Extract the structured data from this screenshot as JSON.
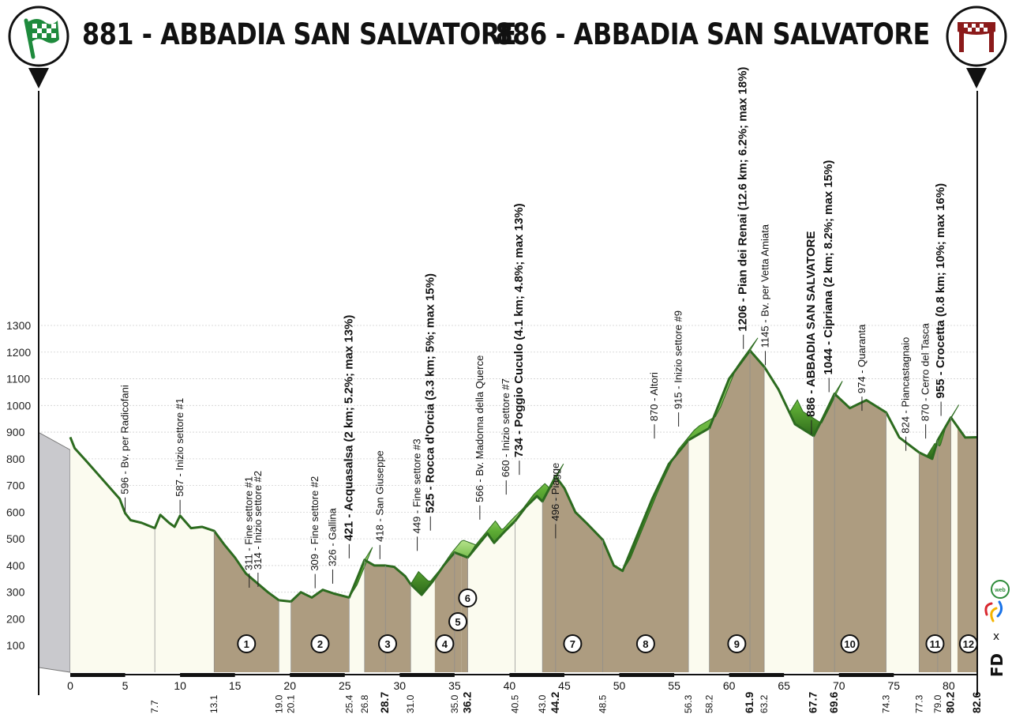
{
  "header": {
    "start_label": "881 - ABBADIA SAN SALVATORE",
    "finish_label": "886 - ABBADIA SAN SALVATORE",
    "start_icon": "checkered-flag-icon",
    "finish_icon": "finish-arch-icon"
  },
  "chart_data": {
    "type": "area",
    "title": "",
    "xlabel": "",
    "ylabel": "",
    "xlim": [
      0,
      82.6
    ],
    "ylim": [
      0,
      1300
    ],
    "y_ticks": [
      100,
      200,
      300,
      400,
      500,
      600,
      700,
      800,
      900,
      1000,
      1100,
      1200,
      1300
    ],
    "x_ticks": [
      0,
      5,
      10,
      15,
      20,
      25,
      30,
      35,
      40,
      45,
      50,
      55,
      60,
      65,
      70,
      75,
      80
    ],
    "x_end_label": "82.6",
    "grid": true,
    "colors": {
      "road_fill": "#ad9c80",
      "gravel_fill": "#fbfbef",
      "sector_line": "#7b5e2c",
      "climb_dark": "#1f3a16",
      "climb_mid": "#4f9a2c",
      "climb_light": "#a6db7a",
      "outline": "#2c6b1f"
    },
    "elevation": [
      {
        "km": 0,
        "alt": 881
      },
      {
        "km": 0.4,
        "alt": 840
      },
      {
        "km": 1.5,
        "alt": 790
      },
      {
        "km": 3,
        "alt": 720
      },
      {
        "km": 4.5,
        "alt": 650
      },
      {
        "km": 5,
        "alt": 596
      },
      {
        "km": 5.5,
        "alt": 570
      },
      {
        "km": 6.5,
        "alt": 560
      },
      {
        "km": 7.7,
        "alt": 540
      },
      {
        "km": 8.2,
        "alt": 590
      },
      {
        "km": 9,
        "alt": 560
      },
      {
        "km": 9.5,
        "alt": 545
      },
      {
        "km": 10,
        "alt": 587
      },
      {
        "km": 11,
        "alt": 540
      },
      {
        "km": 12,
        "alt": 545
      },
      {
        "km": 13.1,
        "alt": 530
      },
      {
        "km": 14,
        "alt": 480
      },
      {
        "km": 15,
        "alt": 430
      },
      {
        "km": 16,
        "alt": 370
      },
      {
        "km": 17,
        "alt": 335
      },
      {
        "km": 18,
        "alt": 300
      },
      {
        "km": 19,
        "alt": 270
      },
      {
        "km": 20.1,
        "alt": 265
      },
      {
        "km": 21,
        "alt": 300
      },
      {
        "km": 22,
        "alt": 280
      },
      {
        "km": 23,
        "alt": 309
      },
      {
        "km": 24,
        "alt": 295
      },
      {
        "km": 25.4,
        "alt": 280
      },
      {
        "km": 26.3,
        "alt": 370
      },
      {
        "km": 26.8,
        "alt": 421
      },
      {
        "km": 27.7,
        "alt": 400
      },
      {
        "km": 28.7,
        "alt": 400
      },
      {
        "km": 29.5,
        "alt": 395
      },
      {
        "km": 30.5,
        "alt": 360
      },
      {
        "km": 31.0,
        "alt": 330
      },
      {
        "km": 32,
        "alt": 290
      },
      {
        "km": 33,
        "alt": 340
      },
      {
        "km": 34,
        "alt": 400
      },
      {
        "km": 35.0,
        "alt": 449
      },
      {
        "km": 36.2,
        "alt": 430
      },
      {
        "km": 37,
        "alt": 470
      },
      {
        "km": 38,
        "alt": 520
      },
      {
        "km": 38.6,
        "alt": 485
      },
      {
        "km": 39.5,
        "alt": 525
      },
      {
        "km": 40.5,
        "alt": 566
      },
      {
        "km": 41.5,
        "alt": 620
      },
      {
        "km": 42.5,
        "alt": 660
      },
      {
        "km": 43.0,
        "alt": 640
      },
      {
        "km": 44.2,
        "alt": 734
      },
      {
        "km": 45,
        "alt": 690
      },
      {
        "km": 46,
        "alt": 600
      },
      {
        "km": 47,
        "alt": 560
      },
      {
        "km": 48.5,
        "alt": 496
      },
      {
        "km": 49.5,
        "alt": 400
      },
      {
        "km": 50.3,
        "alt": 380
      },
      {
        "km": 51.5,
        "alt": 500
      },
      {
        "km": 53,
        "alt": 650
      },
      {
        "km": 54.5,
        "alt": 780
      },
      {
        "km": 56.3,
        "alt": 870
      },
      {
        "km": 58.2,
        "alt": 915
      },
      {
        "km": 60,
        "alt": 1100
      },
      {
        "km": 61.9,
        "alt": 1206
      },
      {
        "km": 63.2,
        "alt": 1145
      },
      {
        "km": 64.5,
        "alt": 1060
      },
      {
        "km": 66,
        "alt": 930
      },
      {
        "km": 67.7,
        "alt": 886
      },
      {
        "km": 68.5,
        "alt": 950
      },
      {
        "km": 69.6,
        "alt": 1044
      },
      {
        "km": 71,
        "alt": 990
      },
      {
        "km": 72.5,
        "alt": 1020
      },
      {
        "km": 74.3,
        "alt": 974
      },
      {
        "km": 75.5,
        "alt": 880
      },
      {
        "km": 77.3,
        "alt": 824
      },
      {
        "km": 78.5,
        "alt": 800
      },
      {
        "km": 79.0,
        "alt": 870
      },
      {
        "km": 80.2,
        "alt": 955
      },
      {
        "km": 81.5,
        "alt": 880
      },
      {
        "km": 82.6,
        "alt": 881
      }
    ],
    "sectors": [
      {
        "n": "1",
        "from": 13.1,
        "to": 19.0
      },
      {
        "n": "2",
        "from": 20.1,
        "to": 25.4
      },
      {
        "n": "3",
        "from": 26.8,
        "to": 31.0
      },
      {
        "n": "4",
        "from": 33.2,
        "to": 35.0
      },
      {
        "n": "5",
        "from": 35.0,
        "to": 35.6
      },
      {
        "n": "6",
        "from": 35.6,
        "to": 36.2
      },
      {
        "n": "7",
        "from": 43.0,
        "to": 48.5
      },
      {
        "n": "8",
        "from": 48.5,
        "to": 56.3
      },
      {
        "n": "9",
        "from": 58.2,
        "to": 63.2
      },
      {
        "n": "10",
        "from": 67.7,
        "to": 74.3
      },
      {
        "n": "11",
        "from": 77.3,
        "to": 80.2
      },
      {
        "n": "12",
        "from": 80.8,
        "to": 82.6
      }
    ],
    "climbs": [
      {
        "from": 25.4,
        "to": 26.8
      },
      {
        "from": 31.0,
        "to": 36.2
      },
      {
        "from": 36.2,
        "to": 40.5
      },
      {
        "from": 40.5,
        "to": 44.2
      },
      {
        "from": 50.3,
        "to": 61.9
      },
      {
        "from": 65.5,
        "to": 69.6
      },
      {
        "from": 78.0,
        "to": 80.2
      }
    ],
    "waypoints": [
      {
        "km": 5,
        "alt": 596,
        "label": "596 - Bv. per Radicofani",
        "bold": false
      },
      {
        "km": 10,
        "alt": 587,
        "label": "587 - Inizio settore #1",
        "bold": false
      },
      {
        "km": 16.3,
        "alt": 311,
        "label": "311 - Fine settore #1",
        "bold": false
      },
      {
        "km": 17.1,
        "alt": 314,
        "label": "314 - Inizio settore #2",
        "bold": false
      },
      {
        "km": 22.3,
        "alt": 309,
        "label": "309 - Fine settore #2",
        "bold": false
      },
      {
        "km": 23.9,
        "alt": 326,
        "label": "326 - Gallina",
        "bold": false
      },
      {
        "km": 25.4,
        "alt": 421,
        "label": "421 - Acquasalsa (2 km; 5.2%; max 13%)",
        "bold": true
      },
      {
        "km": 28.2,
        "alt": 418,
        "label": "418 - San Giuseppe",
        "bold": false
      },
      {
        "km": 31.6,
        "alt": 449,
        "label": "449 - Fine settore #3",
        "bold": false
      },
      {
        "km": 32.8,
        "alt": 525,
        "label": "525 - Rocca d'Orcia (3.3 km; 5%; max 15%)",
        "bold": true
      },
      {
        "km": 37.3,
        "alt": 566,
        "label": "566 - Bv. Madonna della Querce",
        "bold": false
      },
      {
        "km": 39.7,
        "alt": 660,
        "label": "660 - Inizio settore #7",
        "bold": false
      },
      {
        "km": 40.9,
        "alt": 734,
        "label": "734 - Poggio Cuculo (4.1 km; 4.8%; max 13%)",
        "bold": true
      },
      {
        "km": 44.2,
        "alt": 496,
        "label": "496 - Piagge",
        "bold": false
      },
      {
        "km": 53.2,
        "alt": 870,
        "label": "870 - Altori",
        "bold": false
      },
      {
        "km": 55.4,
        "alt": 915,
        "label": "915 - Inizio settore #9",
        "bold": false
      },
      {
        "km": 61.3,
        "alt": 1206,
        "label": "1206 - Pian dei Renai (12.6 km; 6.2%; max 18%)",
        "bold": true
      },
      {
        "km": 63.3,
        "alt": 1145,
        "label": "1145 - Bv. per Vetta Amiata",
        "bold": false
      },
      {
        "km": 67.5,
        "alt": 886,
        "label": "886 - ABBADIA SAN SALVATORE",
        "bold": true
      },
      {
        "km": 69.1,
        "alt": 1044,
        "label": "1044 - Cipriana (2 km; 8.2%; max 15%)",
        "bold": true
      },
      {
        "km": 72.1,
        "alt": 974,
        "label": "974 - Quaranta",
        "bold": false
      },
      {
        "km": 76.1,
        "alt": 824,
        "label": "824 - Piancastagnaio",
        "bold": false
      },
      {
        "km": 77.9,
        "alt": 870,
        "label": "870 - Cerro del Tasca",
        "bold": false
      },
      {
        "km": 79.3,
        "alt": 955,
        "label": "955 - Crocetta (0.8 km; 10%; max 16%)",
        "bold": true
      }
    ],
    "km_markers": [
      {
        "km": 7.7,
        "label": "7.7",
        "bold": false
      },
      {
        "km": 13.1,
        "label": "13.1",
        "bold": false
      },
      {
        "km": 19.0,
        "label": "19.0",
        "bold": false
      },
      {
        "km": 20.1,
        "label": "20.1",
        "bold": false
      },
      {
        "km": 25.4,
        "label": "25.4",
        "bold": false
      },
      {
        "km": 26.8,
        "label": "26.8",
        "bold": false
      },
      {
        "km": 28.7,
        "label": "28.7",
        "bold": true
      },
      {
        "km": 31.0,
        "label": "31.0",
        "bold": false
      },
      {
        "km": 35.0,
        "label": "35.0",
        "bold": false
      },
      {
        "km": 36.2,
        "label": "36.2",
        "bold": true
      },
      {
        "km": 40.5,
        "label": "40.5",
        "bold": false
      },
      {
        "km": 43.0,
        "label": "43.0",
        "bold": false
      },
      {
        "km": 44.2,
        "label": "44.2",
        "bold": true
      },
      {
        "km": 48.5,
        "label": "48.5",
        "bold": false
      },
      {
        "km": 56.3,
        "label": "56.3",
        "bold": false
      },
      {
        "km": 58.2,
        "label": "58.2",
        "bold": false
      },
      {
        "km": 61.9,
        "label": "61.9",
        "bold": true
      },
      {
        "km": 63.2,
        "label": "63.2",
        "bold": false
      },
      {
        "km": 67.7,
        "label": "67.7",
        "bold": true
      },
      {
        "km": 69.6,
        "label": "69.6",
        "bold": true
      },
      {
        "km": 74.3,
        "label": "74.3",
        "bold": false
      },
      {
        "km": 77.3,
        "label": "77.3",
        "bold": false
      },
      {
        "km": 79.0,
        "label": "79.0",
        "bold": false
      },
      {
        "km": 80.2,
        "label": "80.2",
        "bold": true
      },
      {
        "km": 82.6,
        "label": "82.6",
        "bold": true
      }
    ]
  },
  "branding": {
    "fd": "FD",
    "x": "x",
    "web": "web",
    "logo_icon": "cyclingweb-logo-icon"
  }
}
